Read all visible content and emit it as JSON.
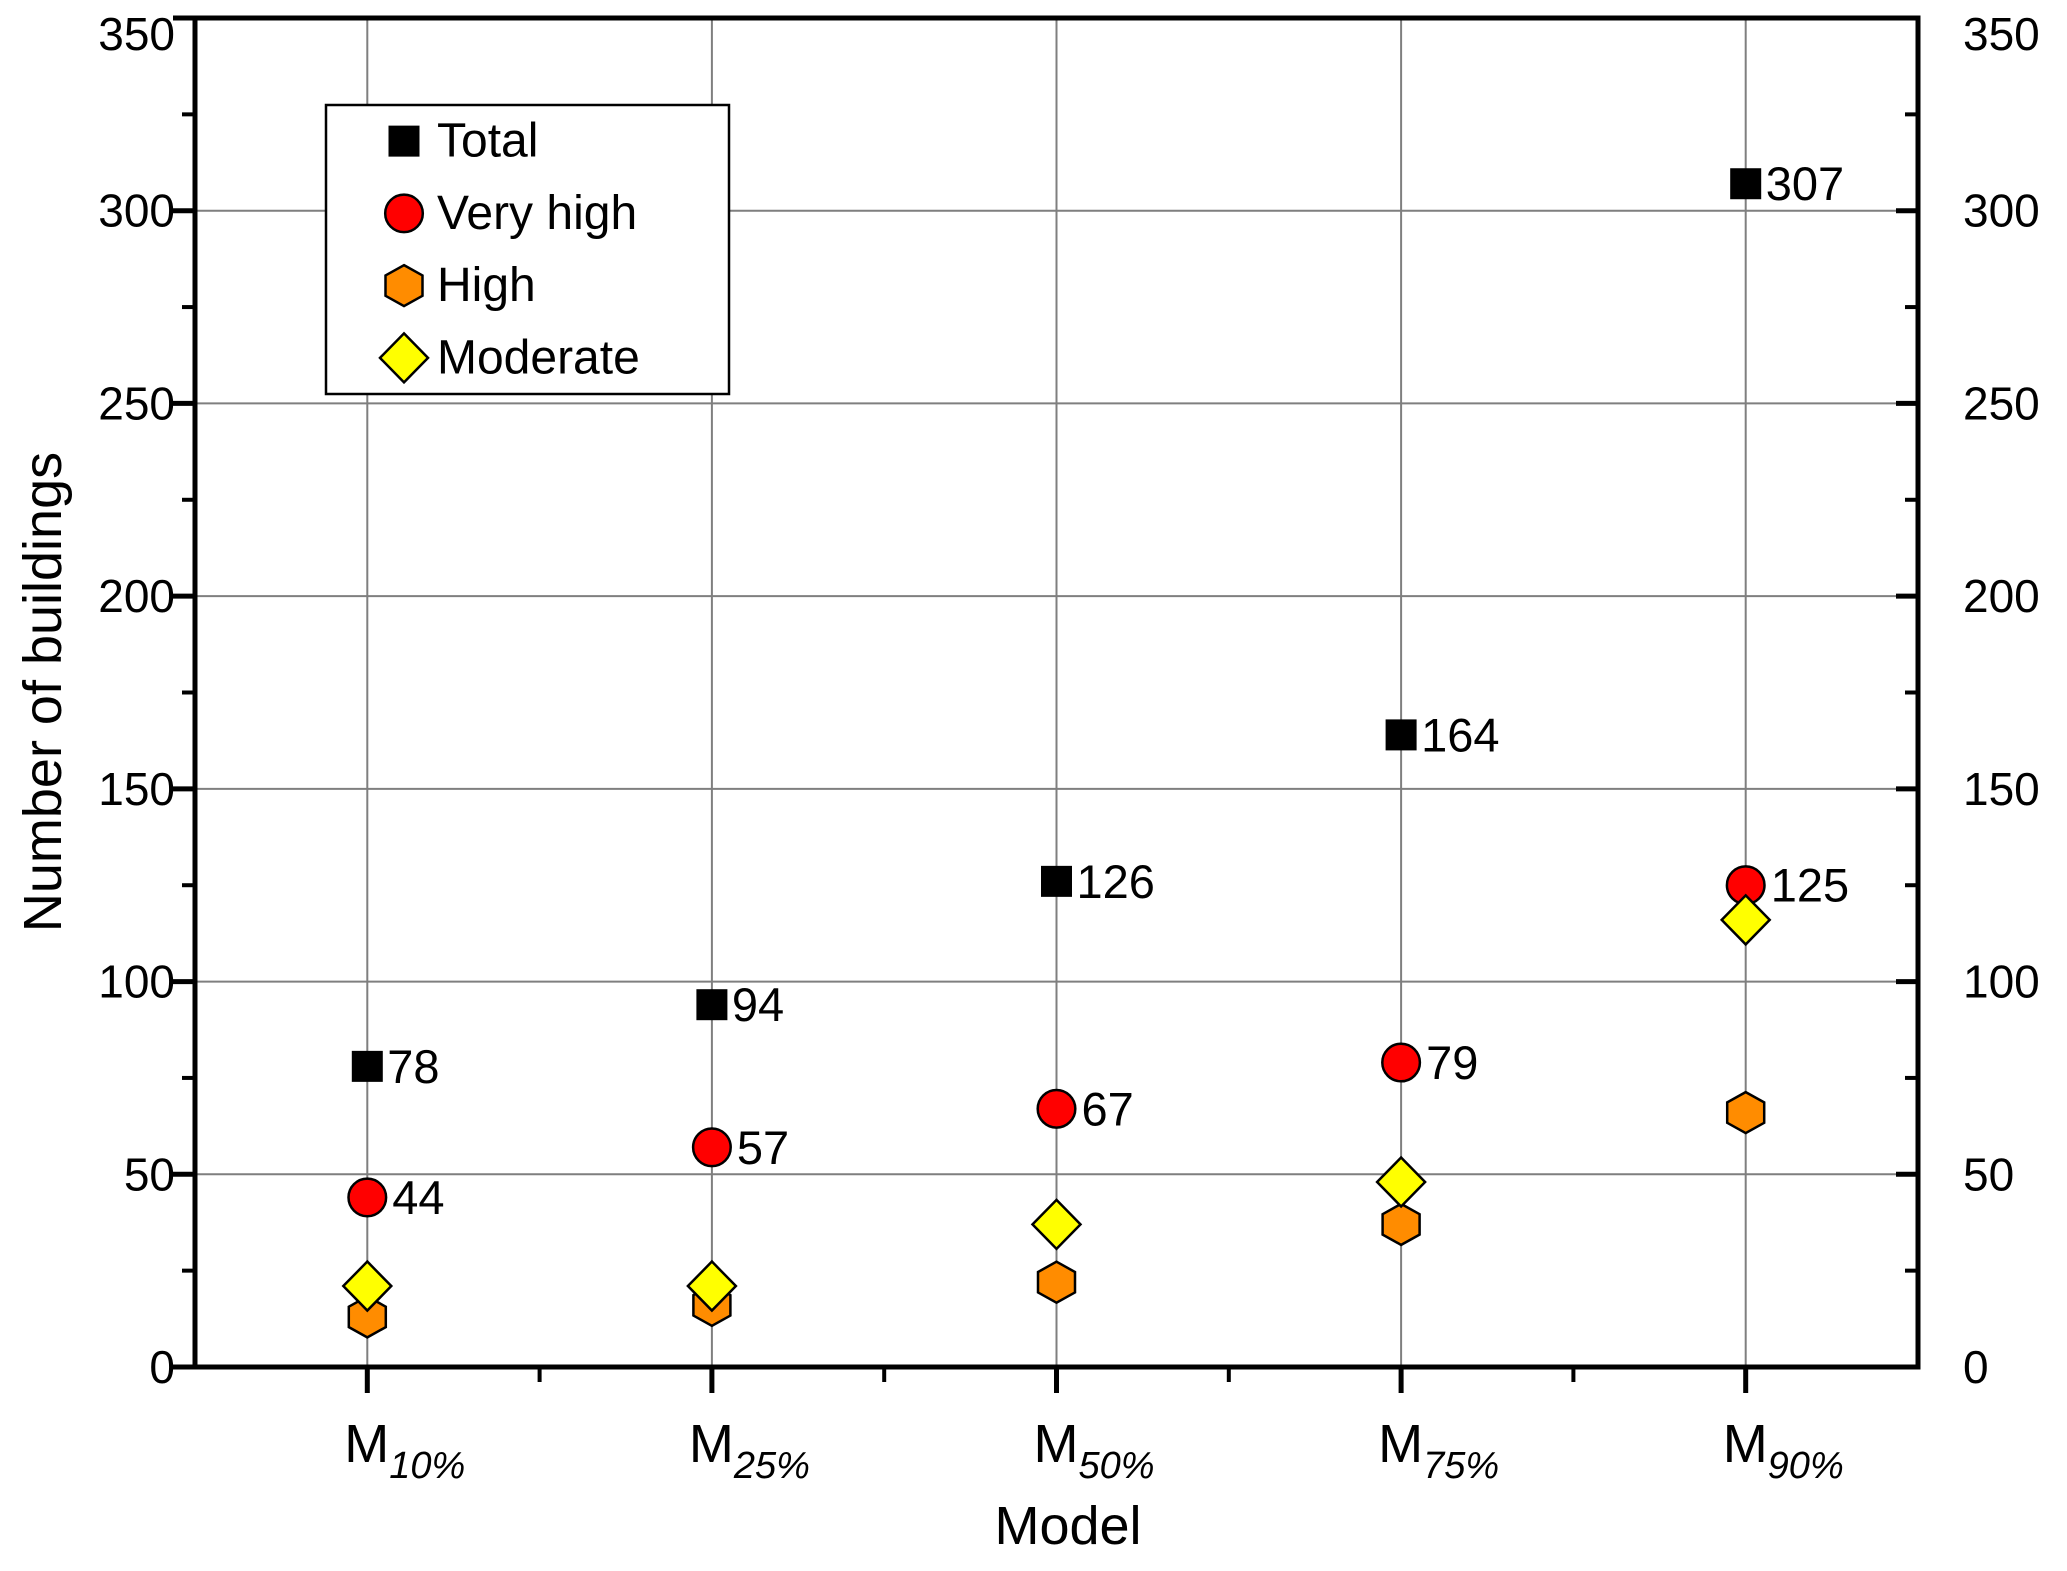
{
  "chart_data": {
    "type": "scatter",
    "title": "",
    "xlabel": "Model",
    "ylabel": "Number of buildings",
    "ylim": [
      0,
      350
    ],
    "yticks": [
      0,
      50,
      100,
      150,
      200,
      250,
      300,
      350
    ],
    "ytick_minor_step": 25,
    "grid": true,
    "right_axis_mirror_labels": true,
    "legend_position": "top-left",
    "gridline_color": "#7f7f7f",
    "axis_color": "#000000",
    "marker_outline_color": "#000000",
    "categories": [
      {
        "base": "M",
        "sub": "10%"
      },
      {
        "base": "M",
        "sub": "25%"
      },
      {
        "base": "M",
        "sub": "50%"
      },
      {
        "base": "M",
        "sub": "75%"
      },
      {
        "base": "M",
        "sub": "90%"
      }
    ],
    "series": [
      {
        "name": "Total",
        "marker": "square",
        "color": "#000000",
        "show_labels": true,
        "label_color": "#000000",
        "values": [
          78,
          94,
          126,
          164,
          307
        ]
      },
      {
        "name": "Very high",
        "marker": "circle",
        "color": "#ff0000",
        "show_labels": true,
        "label_color": "#ff0000",
        "values": [
          44,
          57,
          67,
          79,
          125
        ]
      },
      {
        "name": "High",
        "marker": "hexagon",
        "color": "#ff8c00",
        "show_labels": false,
        "label_color": "#000000",
        "values": [
          13,
          16,
          22,
          37,
          66
        ]
      },
      {
        "name": "Moderate",
        "marker": "diamond",
        "color": "#ffff00",
        "show_labels": false,
        "label_color": "#000000",
        "values": [
          21,
          21,
          37,
          48,
          116
        ]
      }
    ]
  }
}
